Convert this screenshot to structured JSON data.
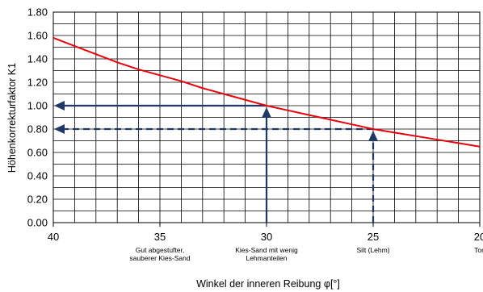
{
  "chart_data": {
    "type": "line",
    "x_axis": {
      "label": "Winkel der inneren Reibung φ[°]",
      "range": [
        40,
        20
      ],
      "reversed": true,
      "ticks": [
        40,
        35,
        30,
        25,
        20
      ],
      "tick_labels": [
        "40",
        "35",
        "30",
        "25",
        "20"
      ],
      "minor_step": 1
    },
    "y_axis": {
      "label": "Höhenkorrekturfaktor K1",
      "range": [
        0,
        1.8
      ],
      "ticks": [
        0,
        0.2,
        0.4,
        0.6,
        0.8,
        1.0,
        1.2,
        1.4,
        1.6,
        1.8
      ],
      "tick_labels": [
        "0.00",
        "0.20",
        "0.40",
        "0.60",
        "0.80",
        "1.00",
        "1.20",
        "1.40",
        "1.60",
        "1.80"
      ],
      "minor_step": 0.1
    },
    "grid": true,
    "series": [
      {
        "color": "#e8000b",
        "x": [
          40,
          39,
          38,
          37,
          36,
          35,
          34,
          33,
          32,
          31,
          30,
          29,
          28,
          27,
          26,
          25,
          24,
          23,
          22,
          21,
          20
        ],
        "y": [
          1.58,
          1.51,
          1.44,
          1.37,
          1.31,
          1.26,
          1.21,
          1.15,
          1.1,
          1.05,
          1.0,
          0.96,
          0.92,
          0.88,
          0.84,
          0.8,
          0.77,
          0.74,
          0.71,
          0.68,
          0.65
        ]
      }
    ],
    "reference_lines": [
      {
        "x": 30,
        "y": 1.0,
        "style": "solid",
        "color": "#1f3864"
      },
      {
        "x": 25,
        "y": 0.8,
        "style": "dashed",
        "color": "#1f3864"
      }
    ],
    "annotations": [
      {
        "x": 35,
        "lines": [
          "Gut abgestufter,",
          "sauberer Kies-Sand"
        ]
      },
      {
        "x": 30,
        "lines": [
          "Kies-Sand mit wenig",
          "Lehmanteilen"
        ]
      },
      {
        "x": 25,
        "lines": [
          "Silt (Lehm)"
        ]
      },
      {
        "x": 20,
        "lines": [
          "Ton"
        ]
      }
    ]
  }
}
